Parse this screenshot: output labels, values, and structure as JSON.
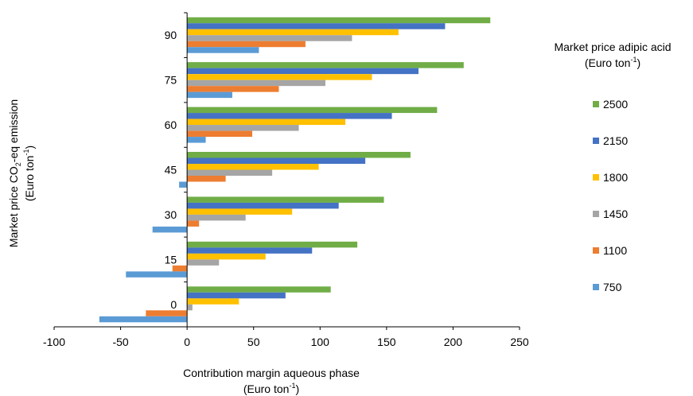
{
  "chart_data": {
    "type": "bar",
    "orientation": "horizontal",
    "categories": [
      "0",
      "15",
      "30",
      "45",
      "60",
      "75",
      "90"
    ],
    "series": [
      {
        "name": "2500",
        "color": "#70ad47",
        "values": [
          108,
          128,
          148,
          168,
          188,
          208,
          228
        ]
      },
      {
        "name": "2150",
        "color": "#4472c4",
        "values": [
          74,
          94,
          114,
          134,
          154,
          174,
          194
        ]
      },
      {
        "name": "1800",
        "color": "#ffc000",
        "values": [
          39,
          59,
          79,
          99,
          119,
          139,
          159
        ]
      },
      {
        "name": "1450",
        "color": "#a5a5a5",
        "values": [
          4,
          24,
          44,
          64,
          84,
          104,
          124
        ]
      },
      {
        "name": "1100",
        "color": "#ed7d31",
        "values": [
          -31,
          -11,
          9,
          29,
          49,
          69,
          89
        ]
      },
      {
        "name": "750",
        "color": "#5b9bd5",
        "values": [
          -66,
          -46,
          -26,
          -6,
          14,
          34,
          54
        ]
      }
    ],
    "xlim": [
      -100,
      250
    ],
    "xticks": [
      "-100",
      "-50",
      "0",
      "50",
      "100",
      "150",
      "200",
      "250"
    ],
    "xlabel_line1": "Contribution margin aqueous phase",
    "xlabel_line2_base": "(Euro ton",
    "xlabel_line2_sup": "-1",
    "xlabel_line2_end": ")",
    "ylabel_line1_base": "Market price CO",
    "ylabel_line1_sub": "2",
    "ylabel_line1_end": "-eq emission",
    "ylabel_line2_base": "(Euro ton",
    "ylabel_line2_sup": "-1",
    "ylabel_line2_end": ")",
    "legend_title_line1": "Market price adipic acid",
    "legend_title_line2_base": "(Euro ton",
    "legend_title_line2_sup": "-1",
    "legend_title_line2_end": ")",
    "legend_position": "right",
    "grid": false
  }
}
